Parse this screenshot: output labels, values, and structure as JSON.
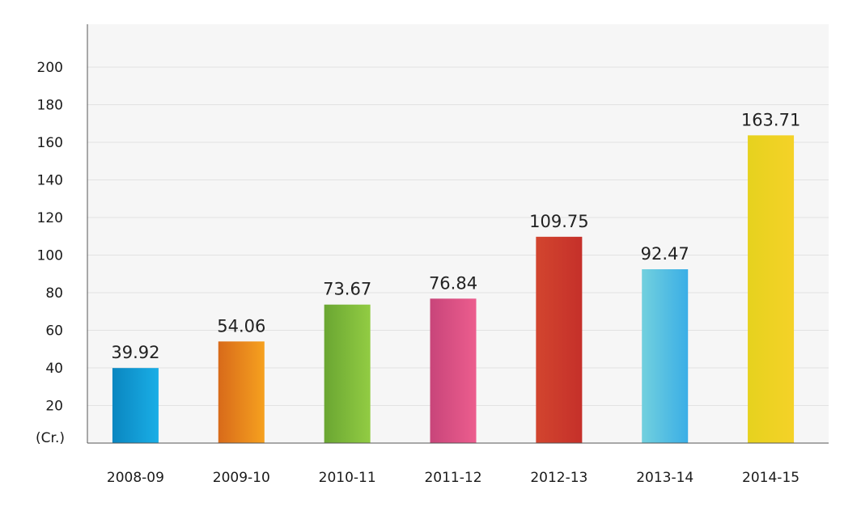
{
  "chart_data": {
    "type": "bar",
    "unit_label": "(Cr.)",
    "categories": [
      "2008-09",
      "2009-10",
      "2010-11",
      "2011-12",
      "2012-13",
      "2013-14",
      "2014-15"
    ],
    "values": [
      39.92,
      54.06,
      73.67,
      76.84,
      109.75,
      92.47,
      163.71
    ],
    "data_labels": [
      "39.92",
      "54.06",
      "73.67",
      "76.84",
      "109.75",
      "92.47",
      "163.71"
    ],
    "y_ticks": [
      20,
      40,
      60,
      80,
      100,
      120,
      140,
      160,
      180,
      200
    ],
    "ylim": [
      0,
      220
    ],
    "grid": true,
    "legend": "none",
    "colors": [
      [
        "#0a86c0",
        "#1aaee6"
      ],
      [
        "#d86a1a",
        "#f6a11f"
      ],
      [
        "#6aa632",
        "#92cc43"
      ],
      [
        "#c8457a",
        "#ec5d8e"
      ],
      [
        "#d2452e",
        "#c5302a"
      ],
      [
        "#72d0de",
        "#3aaee6"
      ],
      [
        "#e6d21e",
        "#f5d228"
      ]
    ]
  }
}
